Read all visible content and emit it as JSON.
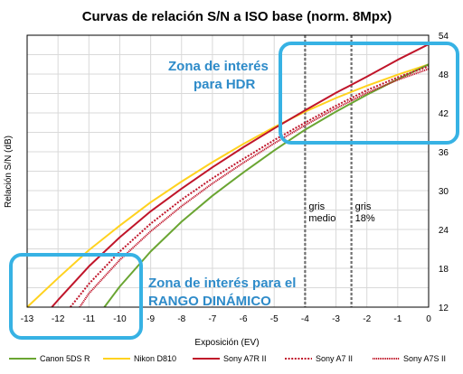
{
  "chart_data": {
    "type": "line",
    "title": "Curvas de relación S/N a ISO base (norm. 8Mpx)",
    "xlabel": "Exposición (EV)",
    "ylabel": "Relación S/N (dB)",
    "xlim": [
      -13,
      0
    ],
    "ylim": [
      12,
      54
    ],
    "x_ticks": [
      "-13",
      "-12",
      "-11",
      "-10",
      "-9",
      "-8",
      "-7",
      "-6",
      "-5",
      "-4",
      "-3",
      "-2",
      "-1",
      "0"
    ],
    "y_ticks": [
      "12",
      "18",
      "24",
      "30",
      "36",
      "42",
      "48",
      "54"
    ],
    "grid": true,
    "legend_position": "bottom",
    "series": [
      {
        "name": "Canon 5DS R",
        "color": "#6aa532",
        "dash": "solid",
        "x": [
          -10.5,
          -10,
          -9,
          -8,
          -7,
          -6,
          -5,
          -4,
          -3,
          -2,
          -1,
          0
        ],
        "y": [
          12,
          15.2,
          20.6,
          25.2,
          29.2,
          32.8,
          36.2,
          39.4,
          42.2,
          44.8,
          47.2,
          49.5
        ]
      },
      {
        "name": "Nikon D810",
        "color": "#ffd21f",
        "dash": "solid",
        "x": [
          -13,
          -12,
          -11,
          -10,
          -9,
          -8,
          -7,
          -6,
          -5,
          -4,
          -3,
          -2,
          -1,
          0
        ],
        "y": [
          12,
          16.5,
          20.8,
          24.6,
          28.2,
          31.4,
          34.4,
          37.2,
          39.8,
          42.2,
          44.3,
          46.2,
          47.9,
          49.5
        ]
      },
      {
        "name": "Sony A7R II",
        "color": "#c0152a",
        "dash": "solid",
        "x": [
          -12.2,
          -12,
          -11,
          -10,
          -9,
          -8,
          -7,
          -6,
          -5,
          -4,
          -3,
          -2,
          -1,
          0
        ],
        "y": [
          12,
          13.1,
          18.3,
          22.8,
          26.8,
          30.3,
          33.6,
          36.7,
          39.6,
          42.4,
          45.1,
          47.6,
          50.2,
          52.6
        ]
      },
      {
        "name": "Sony A7 II",
        "color": "#c0152a",
        "dash": "dotted",
        "x": [
          -11.6,
          -11,
          -10,
          -9,
          -8,
          -7,
          -6,
          -5,
          -4,
          -3,
          -2,
          -1,
          0
        ],
        "y": [
          12,
          15.6,
          20.6,
          24.9,
          28.6,
          31.9,
          34.9,
          37.8,
          40.5,
          43.1,
          45.5,
          47.5,
          49.2
        ]
      },
      {
        "name": "Sony A7S II",
        "color": "#c0152a",
        "dash": "dense",
        "x": [
          -11.3,
          -11,
          -10,
          -9,
          -8,
          -7,
          -6,
          -5,
          -4,
          -3,
          -2,
          -1,
          0
        ],
        "y": [
          12,
          14.1,
          19.3,
          23.7,
          27.6,
          31.1,
          34.3,
          37.3,
          40.1,
          42.7,
          45.1,
          47.1,
          48.8
        ]
      }
    ],
    "vlines": [
      {
        "x": -4,
        "label_line1": "gris",
        "label_line2": "medio"
      },
      {
        "x": -2.5,
        "label_line1": "gris",
        "label_line2": "18%"
      }
    ],
    "annotations": [
      {
        "line1": "Zona de interés",
        "line2": "para HDR",
        "color": "#2e8bc9"
      },
      {
        "line1": "Zona de interés para el",
        "line2": "RANGO DINÁMICO",
        "color": "#2e8bc9"
      }
    ]
  }
}
